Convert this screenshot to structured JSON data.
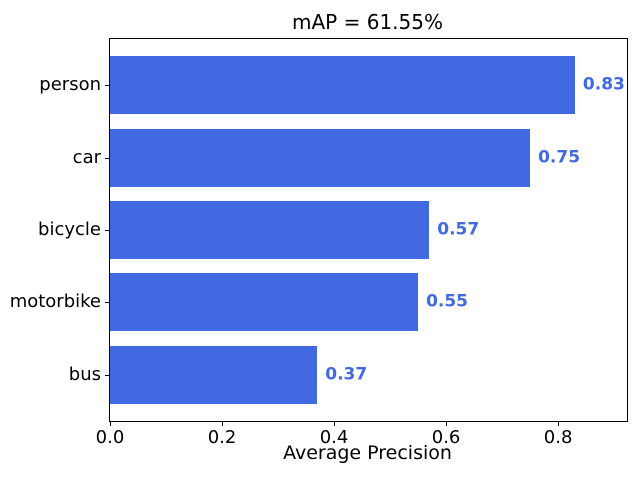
{
  "chart_data": {
    "type": "bar",
    "orientation": "horizontal",
    "title": "mAP = 61.55%",
    "xlabel": "Average Precision",
    "categories": [
      "person",
      "car",
      "bicycle",
      "motorbike",
      "bus"
    ],
    "values": [
      0.83,
      0.75,
      0.57,
      0.55,
      0.37
    ],
    "value_labels": [
      "0.83",
      "0.75",
      "0.57",
      "0.55",
      "0.37"
    ],
    "xtick_labels": [
      "0.0",
      "0.2",
      "0.4",
      "0.6",
      "0.8"
    ],
    "xtick_values": [
      0.0,
      0.2,
      0.4,
      0.6,
      0.8
    ],
    "xlim": [
      0,
      0.923
    ],
    "grid": false,
    "legend": null,
    "colors": {
      "bar": "#4169E1",
      "value_label": "#4169E1",
      "text": "#000000",
      "spine": "#000000",
      "background": "#FFFFFF"
    }
  }
}
